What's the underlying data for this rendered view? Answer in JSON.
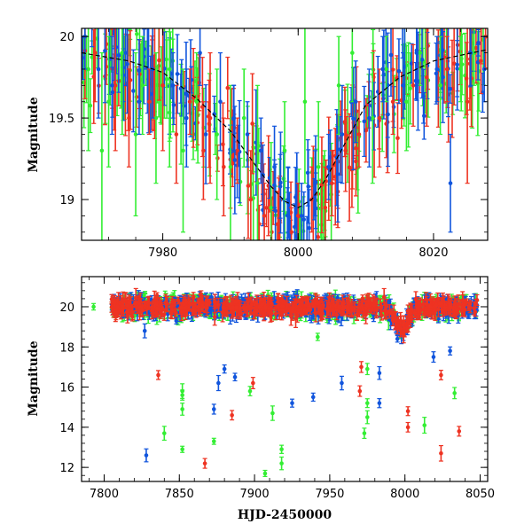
{
  "chart_data": [
    {
      "panel": "top",
      "type": "scatter",
      "title": "",
      "xlabel": "",
      "ylabel": "Magnitude",
      "xlim": [
        7968,
        8028
      ],
      "ylim": [
        20.05,
        18.75
      ],
      "y_inverted": true,
      "xticks": [
        7980,
        8000,
        8020
      ],
      "xtick_labels": [
        "7980",
        "8000",
        "8020"
      ],
      "yticks": [
        19,
        19.5,
        20
      ],
      "ytick_labels": [
        "19",
        "19.5",
        "20"
      ],
      "grid": false,
      "legend": "none",
      "colors": {
        "green": "#33ee33",
        "red": "#ee3322",
        "blue": "#1155dd",
        "model": "#000000"
      },
      "model_curve": {
        "x": [
          7968,
          7975,
          7980,
          7985,
          7990,
          7993,
          7996,
          7998,
          8000,
          8002,
          8004,
          8007,
          8010,
          8015,
          8020,
          8028
        ],
        "y": [
          19.9,
          19.85,
          19.78,
          19.62,
          19.42,
          19.25,
          19.08,
          18.99,
          18.95,
          19.0,
          19.12,
          19.35,
          19.58,
          19.75,
          19.85,
          19.92
        ]
      },
      "series": [
        {
          "color_name": "green",
          "x": [
            7969,
            7971,
            7972,
            7974,
            7976,
            7977,
            7979,
            7981,
            7983,
            7985,
            7988,
            7990,
            7992,
            7994,
            7996,
            7998,
            8001,
            8003,
            8006,
            8008,
            8011,
            8013,
            8016,
            8018,
            8021,
            8024,
            8026
          ],
          "y": [
            19.8,
            19.3,
            19.6,
            19.9,
            19.4,
            19.7,
            19.5,
            19.8,
            19.3,
            19.6,
            19.4,
            19.2,
            19.5,
            19.1,
            18.95,
            19.3,
            19.6,
            19.2,
            19.7,
            19.9,
            19.5,
            19.8,
            19.6,
            19.9,
            19.7,
            19.8,
            19.9
          ],
          "err": [
            0.5,
            0.6,
            0.4,
            0.5,
            0.5,
            0.3,
            0.4,
            0.6,
            0.5,
            0.3,
            0.4,
            0.5,
            0.3,
            0.6,
            0.4,
            0.3,
            0.5,
            0.4,
            0.3,
            0.3,
            0.4,
            0.2,
            0.3,
            0.2,
            0.3,
            0.2,
            0.2
          ]
        },
        {
          "color_name": "red",
          "x": [
            7970,
            7973,
            7975,
            7978,
            7980,
            7982,
            7984,
            7986,
            7987,
            7989,
            7991,
            7993,
            7995,
            7997,
            7999,
            8000,
            8002,
            8004,
            8005,
            8007,
            8009,
            8012,
            8014,
            8017,
            8019,
            8022,
            8025,
            8027
          ],
          "y": [
            19.9,
            19.7,
            19.5,
            19.6,
            19.7,
            19.4,
            19.6,
            19.3,
            19.5,
            19.2,
            19.3,
            19.0,
            18.9,
            18.85,
            18.8,
            18.9,
            19.0,
            18.95,
            19.1,
            19.3,
            19.4,
            19.5,
            19.6,
            19.7,
            19.75,
            19.8,
            19.6,
            19.85
          ],
          "err": [
            0.3,
            0.4,
            0.3,
            0.2,
            0.4,
            0.3,
            0.2,
            0.3,
            0.4,
            0.3,
            0.2,
            0.3,
            0.2,
            0.2,
            0.15,
            0.2,
            0.2,
            0.25,
            0.2,
            0.25,
            0.2,
            0.3,
            0.2,
            0.25,
            0.3,
            0.2,
            0.5,
            0.2
          ]
        },
        {
          "color_name": "blue",
          "x": [
            7968.5,
            7970.5,
            7972.5,
            7974.5,
            7976.5,
            7978.5,
            7981.5,
            7983.5,
            7985.5,
            7988.5,
            7990.5,
            7992.5,
            7994.5,
            7996.5,
            7998.5,
            8000.5,
            8002.5,
            8004.5,
            8006.5,
            8008.5,
            8010.5,
            8012.5,
            8015.5,
            8017.5,
            8020.5,
            8022.5,
            8025.5,
            8027.5
          ],
          "y": [
            20.0,
            19.8,
            19.7,
            19.9,
            19.6,
            19.8,
            19.7,
            19.5,
            19.9,
            19.6,
            19.5,
            19.4,
            19.3,
            19.2,
            19.0,
            18.9,
            19.1,
            19.2,
            19.4,
            19.6,
            19.5,
            19.8,
            19.7,
            19.9,
            19.8,
            19.1,
            19.9,
            19.8
          ],
          "err": [
            0.2,
            0.3,
            0.3,
            0.2,
            0.2,
            0.3,
            0.2,
            0.3,
            0.2,
            0.3,
            0.2,
            0.2,
            0.2,
            0.25,
            0.2,
            0.2,
            0.2,
            0.2,
            0.3,
            0.25,
            0.3,
            0.2,
            0.2,
            0.2,
            0.2,
            0.3,
            0.2,
            0.2
          ]
        }
      ]
    },
    {
      "panel": "bottom",
      "type": "scatter",
      "title": "",
      "xlabel": "HJD-2450000",
      "ylabel": "Magnitude",
      "xlim": [
        7785,
        8055
      ],
      "ylim": [
        21.5,
        11.3
      ],
      "y_inverted": true,
      "xticks": [
        7800,
        7850,
        7900,
        7950,
        8000,
        8050
      ],
      "xtick_labels": [
        "7800",
        "7850",
        "7900",
        "7950",
        "8000",
        "8050"
      ],
      "yticks": [
        12,
        14,
        16,
        18,
        20
      ],
      "ytick_labels": [
        "12",
        "14",
        "16",
        "18",
        "20"
      ],
      "grid": false,
      "legend": "none",
      "baseline_range": [
        7805,
        8048
      ],
      "baseline_mag": 20.0,
      "outliers": [
        {
          "x": 7793,
          "y": 20.0,
          "c": "green"
        },
        {
          "x": 7828,
          "y": 12.6,
          "c": "blue"
        },
        {
          "x": 7827,
          "y": 18.8,
          "c": "blue"
        },
        {
          "x": 7836,
          "y": 16.6,
          "c": "red"
        },
        {
          "x": 7840,
          "y": 13.7,
          "c": "green"
        },
        {
          "x": 7848,
          "y": 19.3,
          "c": "blue"
        },
        {
          "x": 7852,
          "y": 12.9,
          "c": "green"
        },
        {
          "x": 7852,
          "y": 14.9,
          "c": "green"
        },
        {
          "x": 7852,
          "y": 15.6,
          "c": "green"
        },
        {
          "x": 7852,
          "y": 15.8,
          "c": "green"
        },
        {
          "x": 7867,
          "y": 12.2,
          "c": "red"
        },
        {
          "x": 7873,
          "y": 13.3,
          "c": "green"
        },
        {
          "x": 7873,
          "y": 14.9,
          "c": "blue"
        },
        {
          "x": 7876,
          "y": 16.2,
          "c": "blue"
        },
        {
          "x": 7880,
          "y": 16.9,
          "c": "blue"
        },
        {
          "x": 7885,
          "y": 14.6,
          "c": "red"
        },
        {
          "x": 7887,
          "y": 16.5,
          "c": "blue"
        },
        {
          "x": 7897,
          "y": 15.8,
          "c": "green"
        },
        {
          "x": 7899,
          "y": 16.2,
          "c": "red"
        },
        {
          "x": 7907,
          "y": 11.7,
          "c": "green"
        },
        {
          "x": 7912,
          "y": 14.7,
          "c": "green"
        },
        {
          "x": 7918,
          "y": 12.2,
          "c": "green"
        },
        {
          "x": 7918,
          "y": 12.9,
          "c": "green"
        },
        {
          "x": 7925,
          "y": 15.2,
          "c": "blue"
        },
        {
          "x": 7939,
          "y": 15.5,
          "c": "blue"
        },
        {
          "x": 7958,
          "y": 16.2,
          "c": "blue"
        },
        {
          "x": 7970,
          "y": 15.8,
          "c": "red"
        },
        {
          "x": 7971,
          "y": 17.0,
          "c": "red"
        },
        {
          "x": 7973,
          "y": 13.7,
          "c": "green"
        },
        {
          "x": 7975,
          "y": 14.5,
          "c": "green"
        },
        {
          "x": 7975,
          "y": 15.2,
          "c": "green"
        },
        {
          "x": 7975,
          "y": 16.9,
          "c": "green"
        },
        {
          "x": 7983,
          "y": 15.2,
          "c": "blue"
        },
        {
          "x": 7983,
          "y": 16.7,
          "c": "blue"
        },
        {
          "x": 8002,
          "y": 14.0,
          "c": "red"
        },
        {
          "x": 8002,
          "y": 14.8,
          "c": "red"
        },
        {
          "x": 8013,
          "y": 14.1,
          "c": "green"
        },
        {
          "x": 8024,
          "y": 12.7,
          "c": "red"
        },
        {
          "x": 8024,
          "y": 16.6,
          "c": "red"
        },
        {
          "x": 8030,
          "y": 17.8,
          "c": "blue"
        },
        {
          "x": 8033,
          "y": 15.7,
          "c": "green"
        },
        {
          "x": 8036,
          "y": 13.8,
          "c": "red"
        },
        {
          "x": 8019,
          "y": 17.5,
          "c": "blue"
        },
        {
          "x": 7995,
          "y": 18.4,
          "c": "blue"
        },
        {
          "x": 7942,
          "y": 18.5,
          "c": "green"
        }
      ]
    }
  ]
}
